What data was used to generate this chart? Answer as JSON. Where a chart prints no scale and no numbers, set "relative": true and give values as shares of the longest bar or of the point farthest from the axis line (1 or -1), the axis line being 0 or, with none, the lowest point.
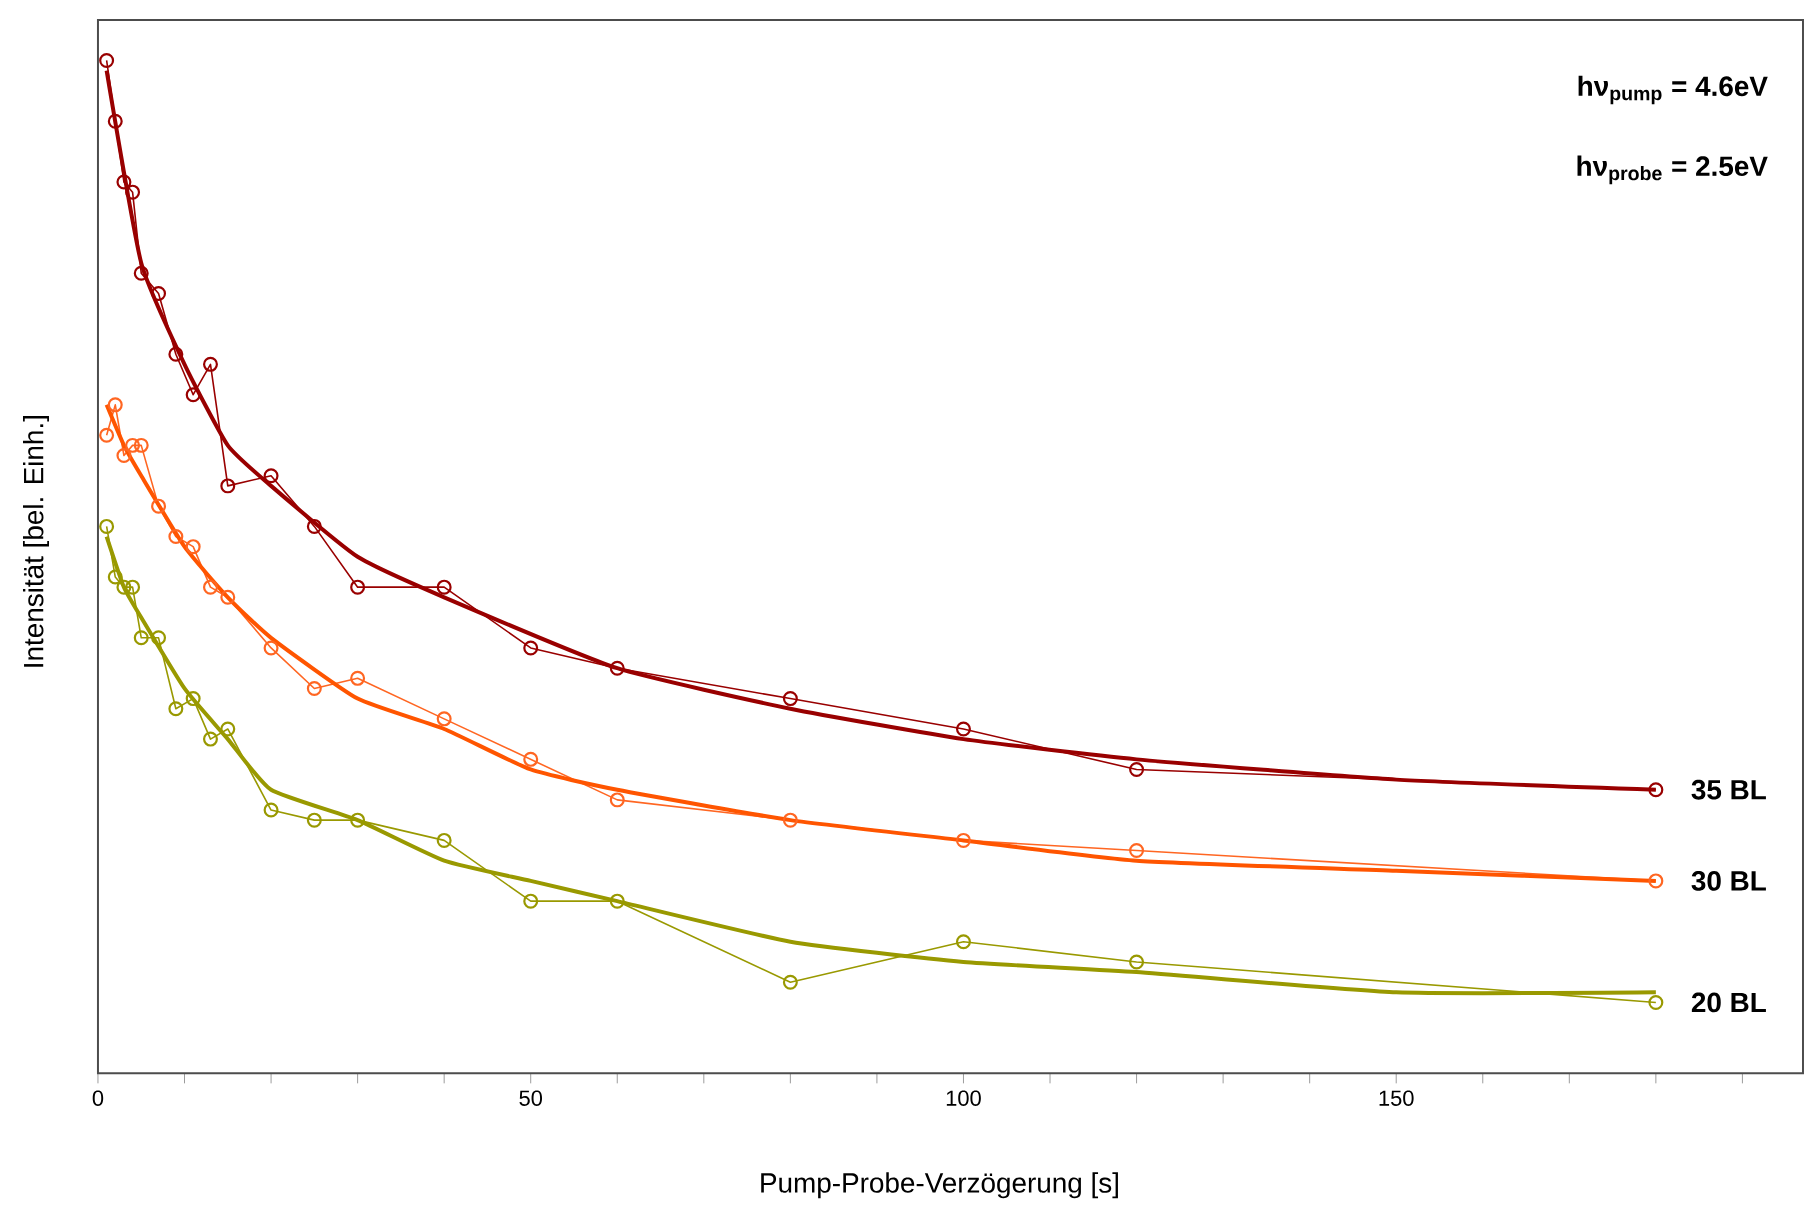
{
  "chart_data": {
    "type": "line",
    "relative": true,
    "xlabel": "Pump-Probe-Verzögerung [s]",
    "ylabel": "Intensität [bel. Einh.]",
    "xlim": [
      0,
      197
    ],
    "xticks": [
      0,
      {
        "value": 10,
        "label": null
      },
      {
        "value": 20,
        "label": null
      },
      {
        "value": 30,
        "label": null
      },
      {
        "value": 40,
        "label": null
      },
      50,
      {
        "value": 60,
        "label": null
      },
      {
        "value": 70,
        "label": null
      },
      {
        "value": 80,
        "label": null
      },
      {
        "value": 90,
        "label": null
      },
      100,
      {
        "value": 110,
        "label": null
      },
      {
        "value": 120,
        "label": null
      },
      {
        "value": 130,
        "label": null
      },
      {
        "value": 140,
        "label": null
      },
      150,
      {
        "value": 160,
        "label": null
      },
      {
        "value": 170,
        "label": null
      },
      {
        "value": 180,
        "label": null
      },
      {
        "value": 190,
        "label": null
      }
    ],
    "tick_labels": "x",
    "grid": false,
    "marker": "circle",
    "line_style": "solid",
    "annotations": [
      "hν$_{pump}$ = 4.6eV",
      "hν$_{probe}$ = 2.5eV"
    ],
    "series": [
      {
        "name": "35 BL",
        "color": "#990000",
        "x": [
          1,
          2,
          3,
          4,
          5,
          7,
          9,
          11,
          13,
          15,
          20,
          25,
          30,
          40,
          50,
          60,
          80,
          100,
          120,
          180
        ],
        "values": [
          1.0,
          0.94,
          0.88,
          0.87,
          0.79,
          0.77,
          0.71,
          0.67,
          0.7,
          0.58,
          0.59,
          0.54,
          0.48,
          0.48,
          0.42,
          0.4,
          0.37,
          0.34,
          0.3,
          0.28
        ]
      },
      {
        "name": "30 BL",
        "color": "#ff6622",
        "x": [
          1,
          2,
          3,
          4,
          5,
          7,
          9,
          11,
          13,
          15,
          20,
          25,
          30,
          40,
          50,
          60,
          80,
          100,
          120,
          180
        ],
        "values": [
          0.63,
          0.66,
          0.61,
          0.62,
          0.62,
          0.56,
          0.53,
          0.52,
          0.48,
          0.47,
          0.42,
          0.38,
          0.39,
          0.35,
          0.31,
          0.27,
          0.25,
          0.23,
          0.22,
          0.19
        ]
      },
      {
        "name": "20 BL",
        "color": "#999900",
        "x": [
          1,
          2,
          3,
          4,
          5,
          7,
          9,
          11,
          13,
          15,
          20,
          25,
          30,
          40,
          50,
          60,
          80,
          100,
          120,
          180
        ],
        "values": [
          0.54,
          0.49,
          0.48,
          0.48,
          0.43,
          0.43,
          0.36,
          0.37,
          0.33,
          0.34,
          0.26,
          0.25,
          0.25,
          0.23,
          0.17,
          0.17,
          0.09,
          0.13,
          0.11,
          0.07
        ]
      },
      {
        "type": "line",
        "marker": "none",
        "color": "#990000",
        "x": [
          1,
          5,
          10,
          15,
          20,
          30,
          40,
          60,
          80,
          100,
          120,
          150,
          180
        ],
        "values": [
          0.99,
          0.8,
          0.7,
          0.62,
          0.58,
          0.51,
          0.47,
          0.4,
          0.36,
          0.33,
          0.31,
          0.29,
          0.28
        ]
      },
      {
        "type": "line",
        "marker": "none",
        "color": "#ff5500",
        "x": [
          1,
          3,
          5,
          10,
          15,
          20,
          30,
          40,
          50,
          60,
          80,
          100,
          120,
          150,
          180
        ],
        "values": [
          0.66,
          0.62,
          0.59,
          0.52,
          0.47,
          0.43,
          0.37,
          0.34,
          0.3,
          0.28,
          0.25,
          0.23,
          0.21,
          0.2,
          0.19
        ]
      },
      {
        "type": "line",
        "marker": "none",
        "color": "#999900",
        "x": [
          1,
          3,
          5,
          10,
          15,
          20,
          30,
          40,
          50,
          60,
          80,
          100,
          120,
          150,
          180
        ],
        "values": [
          0.53,
          0.48,
          0.45,
          0.38,
          0.33,
          0.28,
          0.25,
          0.21,
          0.19,
          0.17,
          0.13,
          0.11,
          0.1,
          0.08,
          0.08
        ]
      }
    ]
  }
}
